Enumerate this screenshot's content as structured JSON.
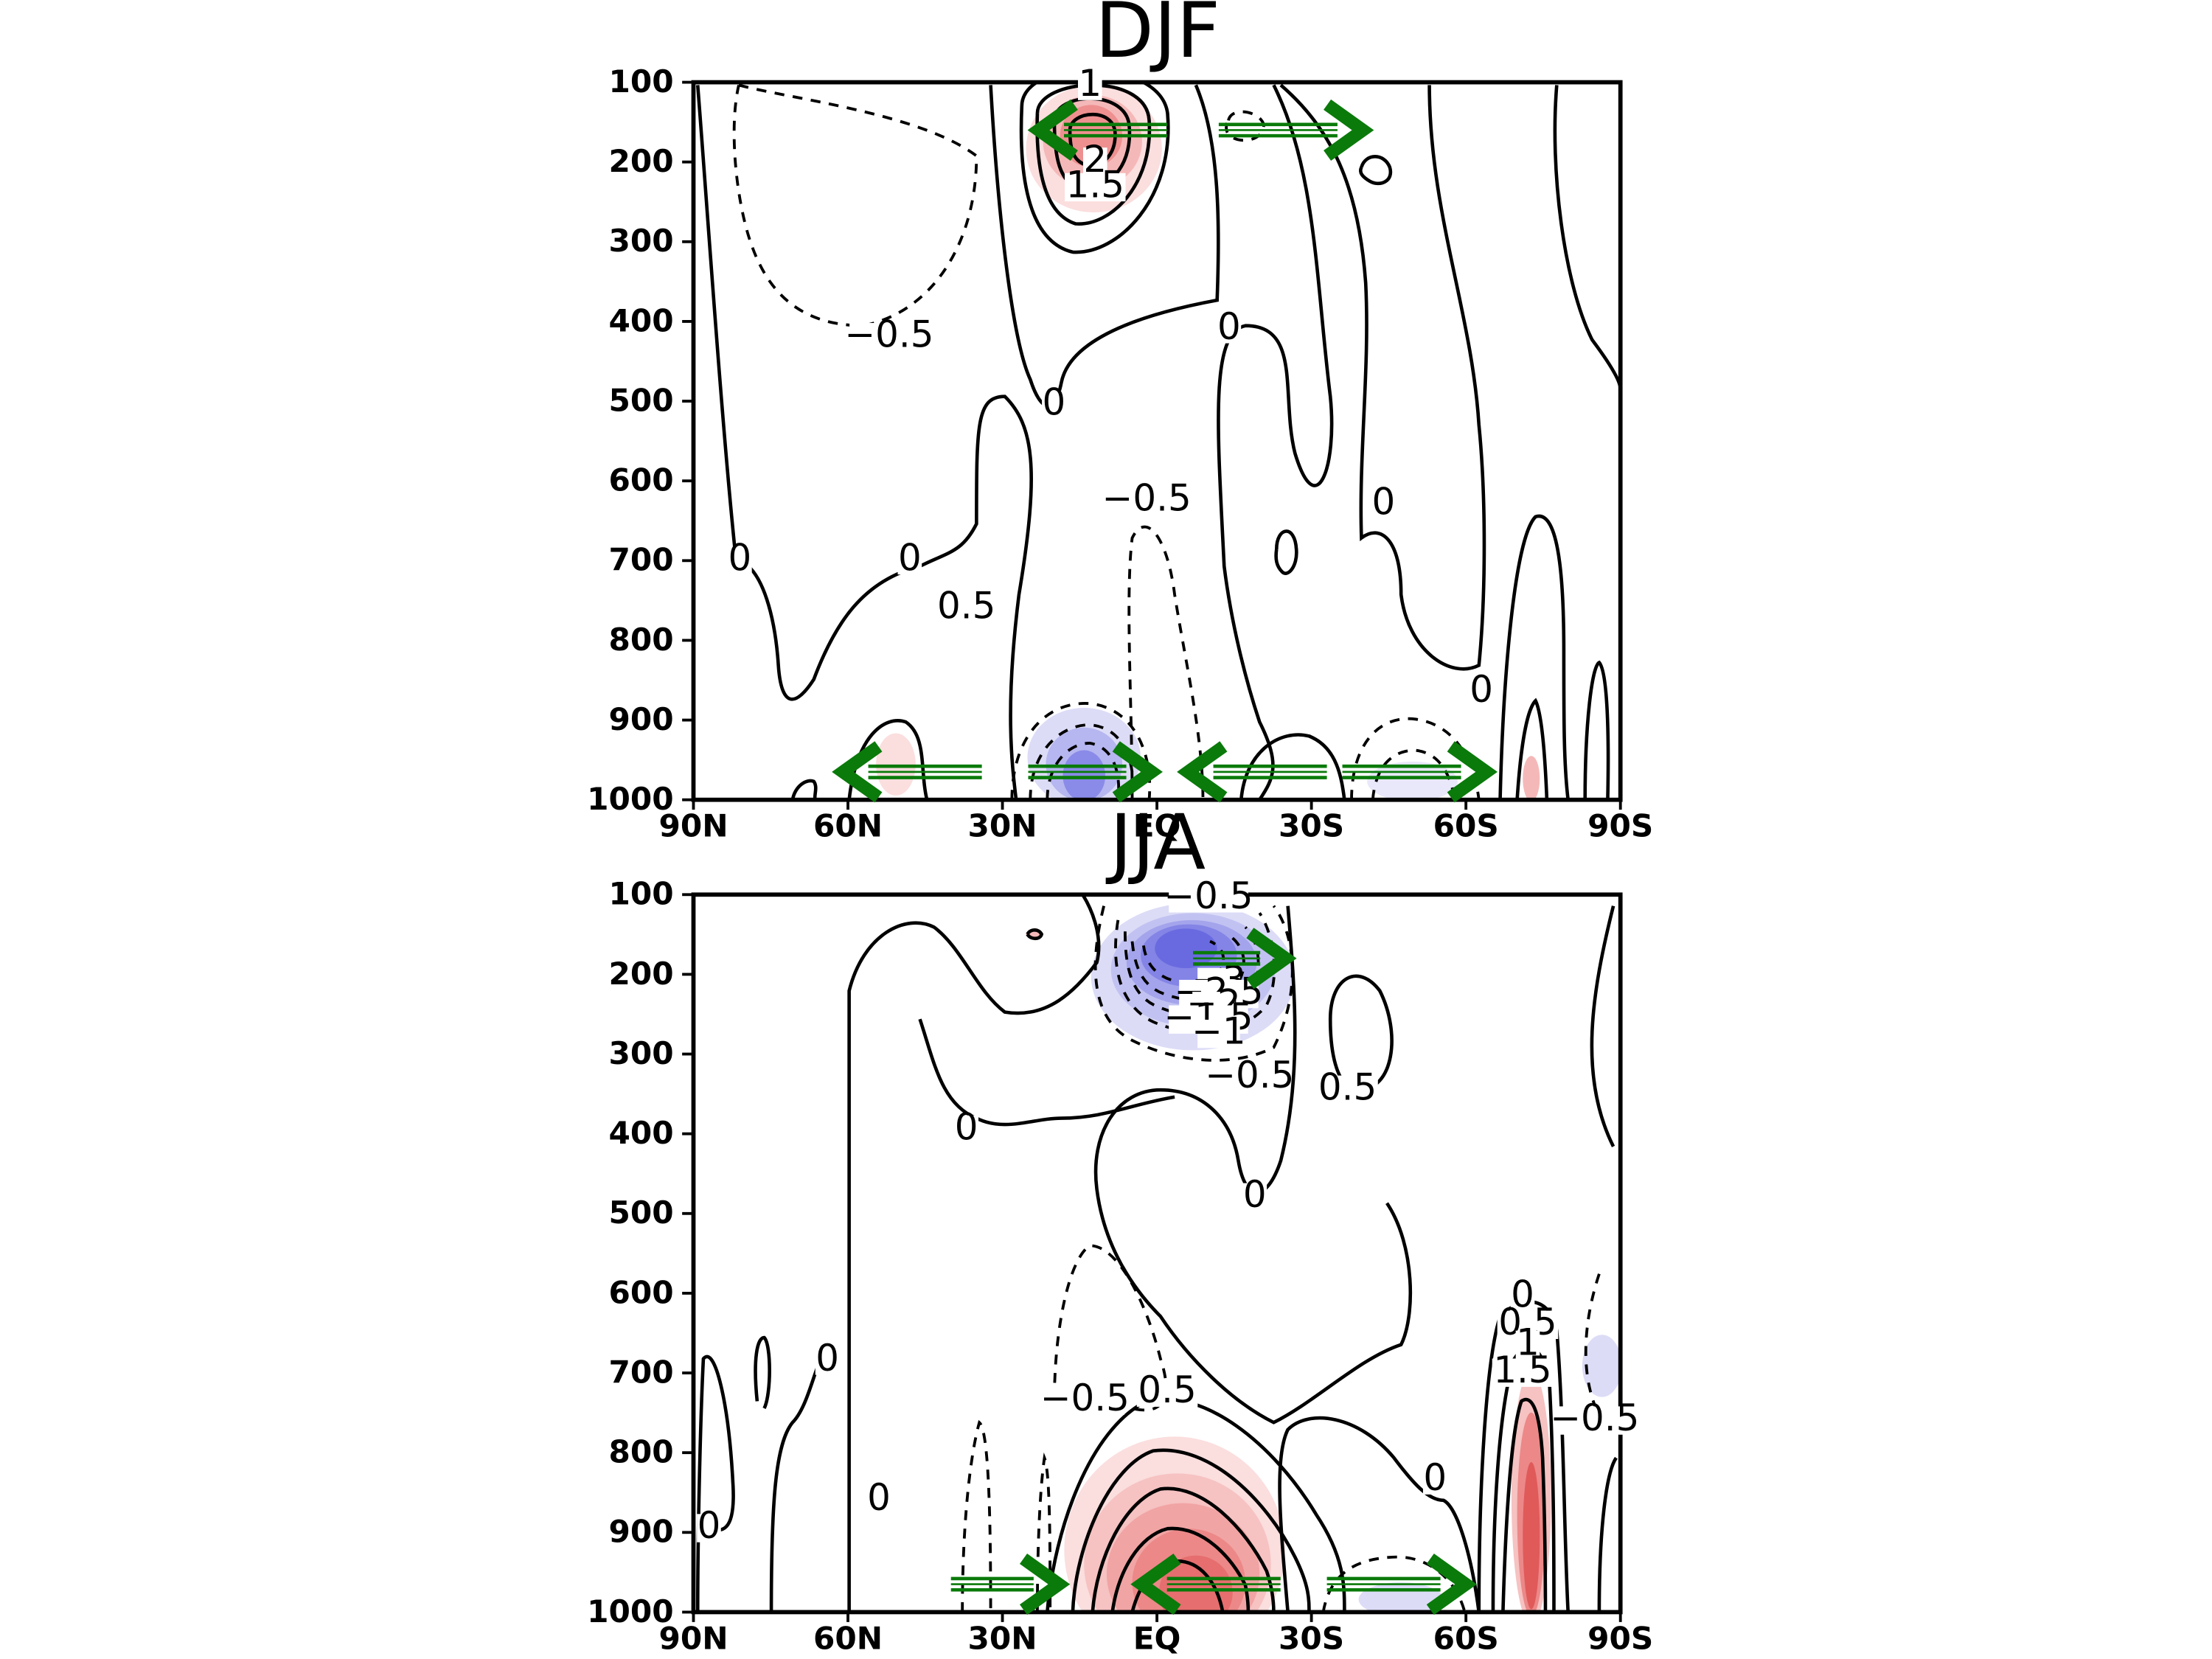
{
  "chart_data": [
    {
      "type": "contour",
      "title": "DJF",
      "y_ticks": [
        "100",
        "200",
        "300",
        "400",
        "500",
        "600",
        "700",
        "800",
        "900",
        "1000"
      ],
      "x_ticks": [
        "90N",
        "60N",
        "30N",
        "EQ",
        "30S",
        "60S",
        "90S"
      ],
      "contour_levels": [
        -3,
        -2.5,
        -2,
        -1.5,
        -1,
        -0.5,
        0,
        0.5,
        1,
        1.5,
        2
      ],
      "contour_labels": [
        {
          "text": "1",
          "lat": 13,
          "p": 110
        },
        {
          "text": "2",
          "lat": 12,
          "p": 205
        },
        {
          "text": "1.5",
          "lat": 12,
          "p": 237
        },
        {
          "text": "-0.5",
          "lat": 52,
          "p": 425
        },
        {
          "text": "0",
          "lat": 20,
          "p": 510
        },
        {
          "text": "0",
          "lat": -14,
          "p": 415
        },
        {
          "text": "-0.5",
          "lat": 2,
          "p": 630
        },
        {
          "text": "0",
          "lat": -44,
          "p": 635
        },
        {
          "text": "0",
          "lat": 81,
          "p": 705
        },
        {
          "text": "0",
          "lat": 48,
          "p": 705
        },
        {
          "text": "0.5",
          "lat": 37,
          "p": 765
        },
        {
          "text": "0",
          "lat": -63,
          "p": 870
        }
      ],
      "arrows": [
        {
          "direction": "left",
          "lat_from": -2,
          "lat_to": 23,
          "p": 160
        },
        {
          "direction": "right",
          "lat_from": -12,
          "lat_to": -40,
          "p": 160
        },
        {
          "direction": "left",
          "lat_from": 34,
          "lat_to": 61,
          "p": 965
        },
        {
          "direction": "right",
          "lat_from": 25,
          "lat_to": 1,
          "p": 965
        },
        {
          "direction": "left",
          "lat_from": -33,
          "lat_to": -6,
          "p": 965
        },
        {
          "direction": "right",
          "lat_from": -36,
          "lat_to": -64,
          "p": 965
        }
      ]
    },
    {
      "type": "contour",
      "title": "JJA",
      "y_ticks": [
        "100",
        "200",
        "300",
        "400",
        "500",
        "600",
        "700",
        "800",
        "900",
        "1000"
      ],
      "x_ticks": [
        "90N",
        "60N",
        "30N",
        "EQ",
        "30S",
        "60S",
        "90S"
      ],
      "contour_levels": [
        -3,
        -2.5,
        -2,
        -1.5,
        -1,
        -0.5,
        0,
        0.5,
        1,
        1.5
      ],
      "contour_labels": [
        {
          "text": "-0.5",
          "lat": -10,
          "p": 110
        },
        {
          "text": "-3",
          "lat": -12,
          "p": 215
        },
        {
          "text": "-2.5",
          "lat": -12,
          "p": 230
        },
        {
          "text": "-2",
          "lat": -11,
          "p": 245
        },
        {
          "text": "-1.5",
          "lat": -10,
          "p": 262
        },
        {
          "text": "-1",
          "lat": -12,
          "p": 280
        },
        {
          "text": "-0.5",
          "lat": -18,
          "p": 335
        },
        {
          "text": "0.5",
          "lat": -37,
          "p": 350
        },
        {
          "text": "0",
          "lat": 37,
          "p": 400
        },
        {
          "text": "0",
          "lat": -19,
          "p": 485
        },
        {
          "text": "0",
          "lat": 64,
          "p": 690
        },
        {
          "text": "-0.5",
          "lat": 14,
          "p": 740
        },
        {
          "text": "0.5",
          "lat": -2,
          "p": 730
        },
        {
          "text": "0",
          "lat": -54,
          "p": 840
        },
        {
          "text": "0",
          "lat": 54,
          "p": 865
        },
        {
          "text": "0",
          "lat": 87,
          "p": 900
        },
        {
          "text": "0",
          "lat": -71,
          "p": 610
        },
        {
          "text": "0.5",
          "lat": -72,
          "p": 645
        },
        {
          "text": "1",
          "lat": -72,
          "p": 670
        },
        {
          "text": "1.5",
          "lat": -71,
          "p": 705
        },
        {
          "text": "-0.5",
          "lat": -85,
          "p": 765
        }
      ],
      "arrows": [
        {
          "direction": "right",
          "lat_from": -7,
          "lat_to": -25,
          "p": 180
        },
        {
          "direction": "right",
          "lat_from": 40,
          "lat_to": 19,
          "p": 965
        },
        {
          "direction": "left",
          "lat_from": -24,
          "lat_to": 3,
          "p": 965
        },
        {
          "direction": "right",
          "lat_from": -33,
          "lat_to": -60,
          "p": 965
        }
      ]
    }
  ]
}
